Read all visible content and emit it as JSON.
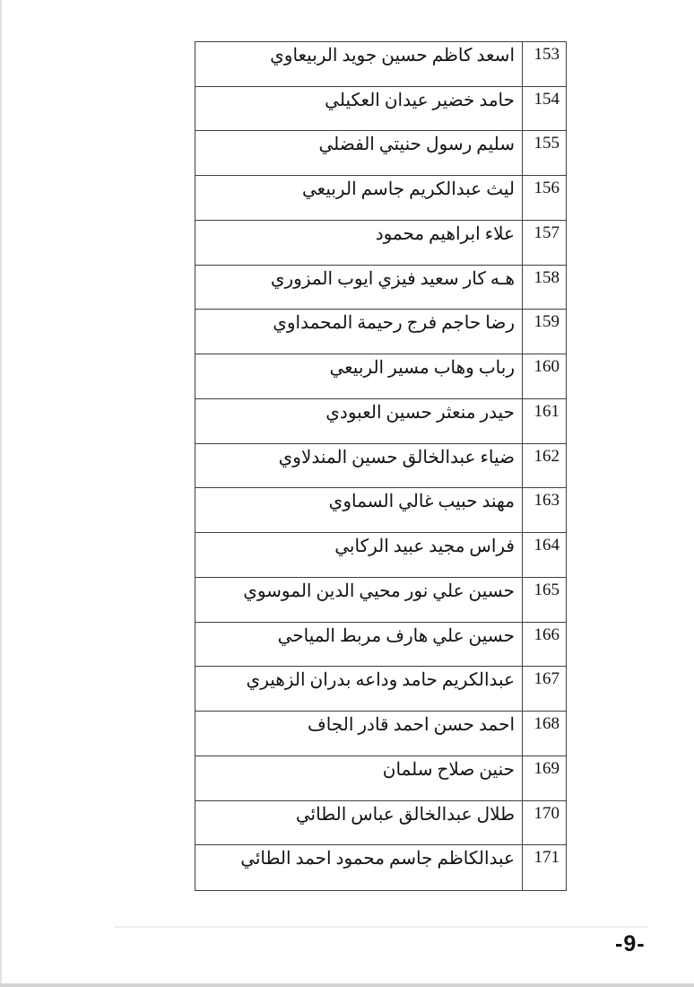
{
  "page": {
    "number_label": "-9-"
  },
  "table": {
    "rows": [
      {
        "no": "153",
        "name": "اسعد كاظم حسين جويد الربيعاوي"
      },
      {
        "no": "154",
        "name": "حامد خضير عيدان العكيلي"
      },
      {
        "no": "155",
        "name": "سليم رسول حنيتي الفضلي"
      },
      {
        "no": "156",
        "name": "ليث عبدالكريم جاسم الربيعي"
      },
      {
        "no": "157",
        "name": "علاء ابراهيم محمود"
      },
      {
        "no": "158",
        "name": "هـه كار سعيد فيزي ايوب المزوري"
      },
      {
        "no": "159",
        "name": "رضا حاجم فرج رحيمة المحمداوي"
      },
      {
        "no": "160",
        "name": "رباب وهاب مسير الربيعي"
      },
      {
        "no": "161",
        "name": "حيدر منعثر حسين العبودي"
      },
      {
        "no": "162",
        "name": "ضياء عبدالخالق حسين المندلاوي"
      },
      {
        "no": "163",
        "name": "مهند حبيب غالي السماوي"
      },
      {
        "no": "164",
        "name": "فراس مجيد عبيد الركابي"
      },
      {
        "no": "165",
        "name": "حسين علي نور محيي الدين الموسوي"
      },
      {
        "no": "166",
        "name": "حسين علي هارف مربط المياحي"
      },
      {
        "no": "167",
        "name": "عبدالكريم حامد وداعه بدران الزهيري"
      },
      {
        "no": "168",
        "name": "احمد حسن احمد قادر الجاف"
      },
      {
        "no": "169",
        "name": "حنين صلاح سلمان"
      },
      {
        "no": "170",
        "name": "طلال عبدالخالق عباس الطائي"
      },
      {
        "no": "171",
        "name": "عبدالكاظم جاسم محمود احمد الطائي"
      }
    ]
  }
}
